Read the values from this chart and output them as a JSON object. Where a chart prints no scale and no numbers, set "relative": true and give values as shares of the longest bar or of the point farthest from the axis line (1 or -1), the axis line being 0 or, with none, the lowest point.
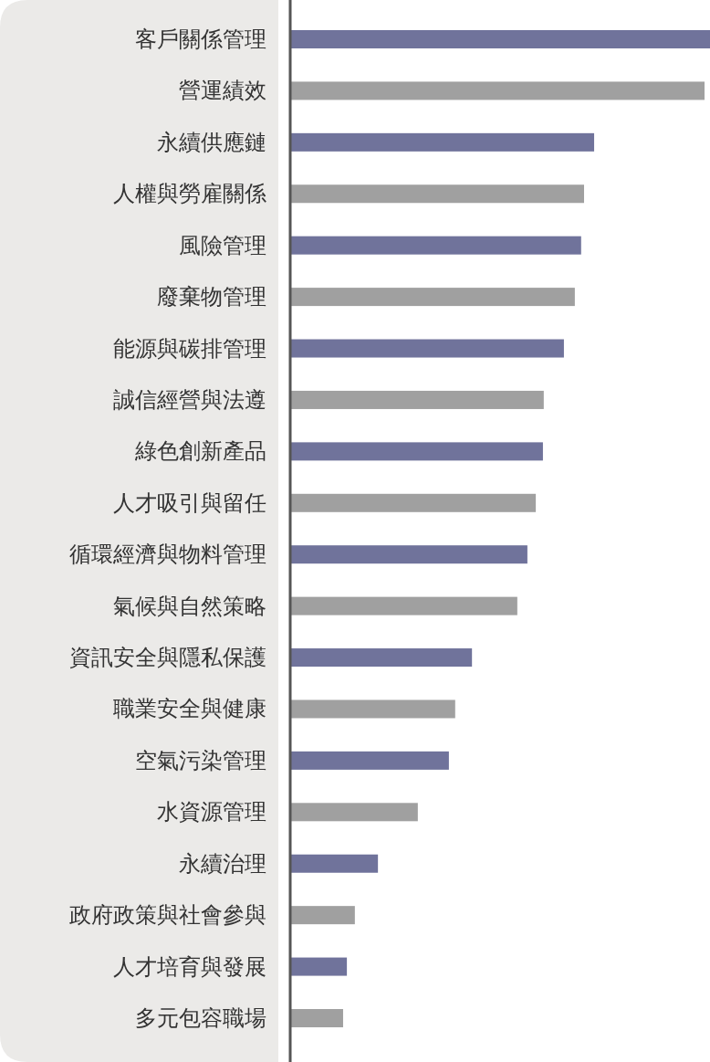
{
  "chart_data": {
    "type": "bar",
    "orientation": "horizontal",
    "relative": true,
    "categories": [
      "客戶關係管理",
      "營運績效",
      "永續供應鏈",
      "人權與勞雇關係",
      "風險管理",
      "廢棄物管理",
      "能源與碳排管理",
      "誠信經營與法遵",
      "綠色創新產品",
      "人才吸引與留任",
      "循環經濟與物料管理",
      "氣候與自然策略",
      "資訊安全與隱私保護",
      "職業安全與健康",
      "空氣污染管理",
      "水資源管理",
      "永續治理",
      "政府政策與社會參與",
      "人才培育與發展",
      "多元包容職場"
    ],
    "values": [
      1,
      0.987,
      0.724,
      0.7,
      0.693,
      0.678,
      0.652,
      0.604,
      0.602,
      0.585,
      0.565,
      0.541,
      0.433,
      0.393,
      0.378,
      0.304,
      0.209,
      0.154,
      0.135,
      0.126
    ],
    "colors": [
      "#70739b",
      "#a0a0a0",
      "#70739b",
      "#a0a0a0",
      "#70739b",
      "#a0a0a0",
      "#70739b",
      "#a0a0a0",
      "#70739b",
      "#a0a0a0",
      "#70739b",
      "#a0a0a0",
      "#70739b",
      "#a0a0a0",
      "#70739b",
      "#a0a0a0",
      "#70739b",
      "#a0a0a0",
      "#70739b",
      "#a0a0a0"
    ]
  }
}
